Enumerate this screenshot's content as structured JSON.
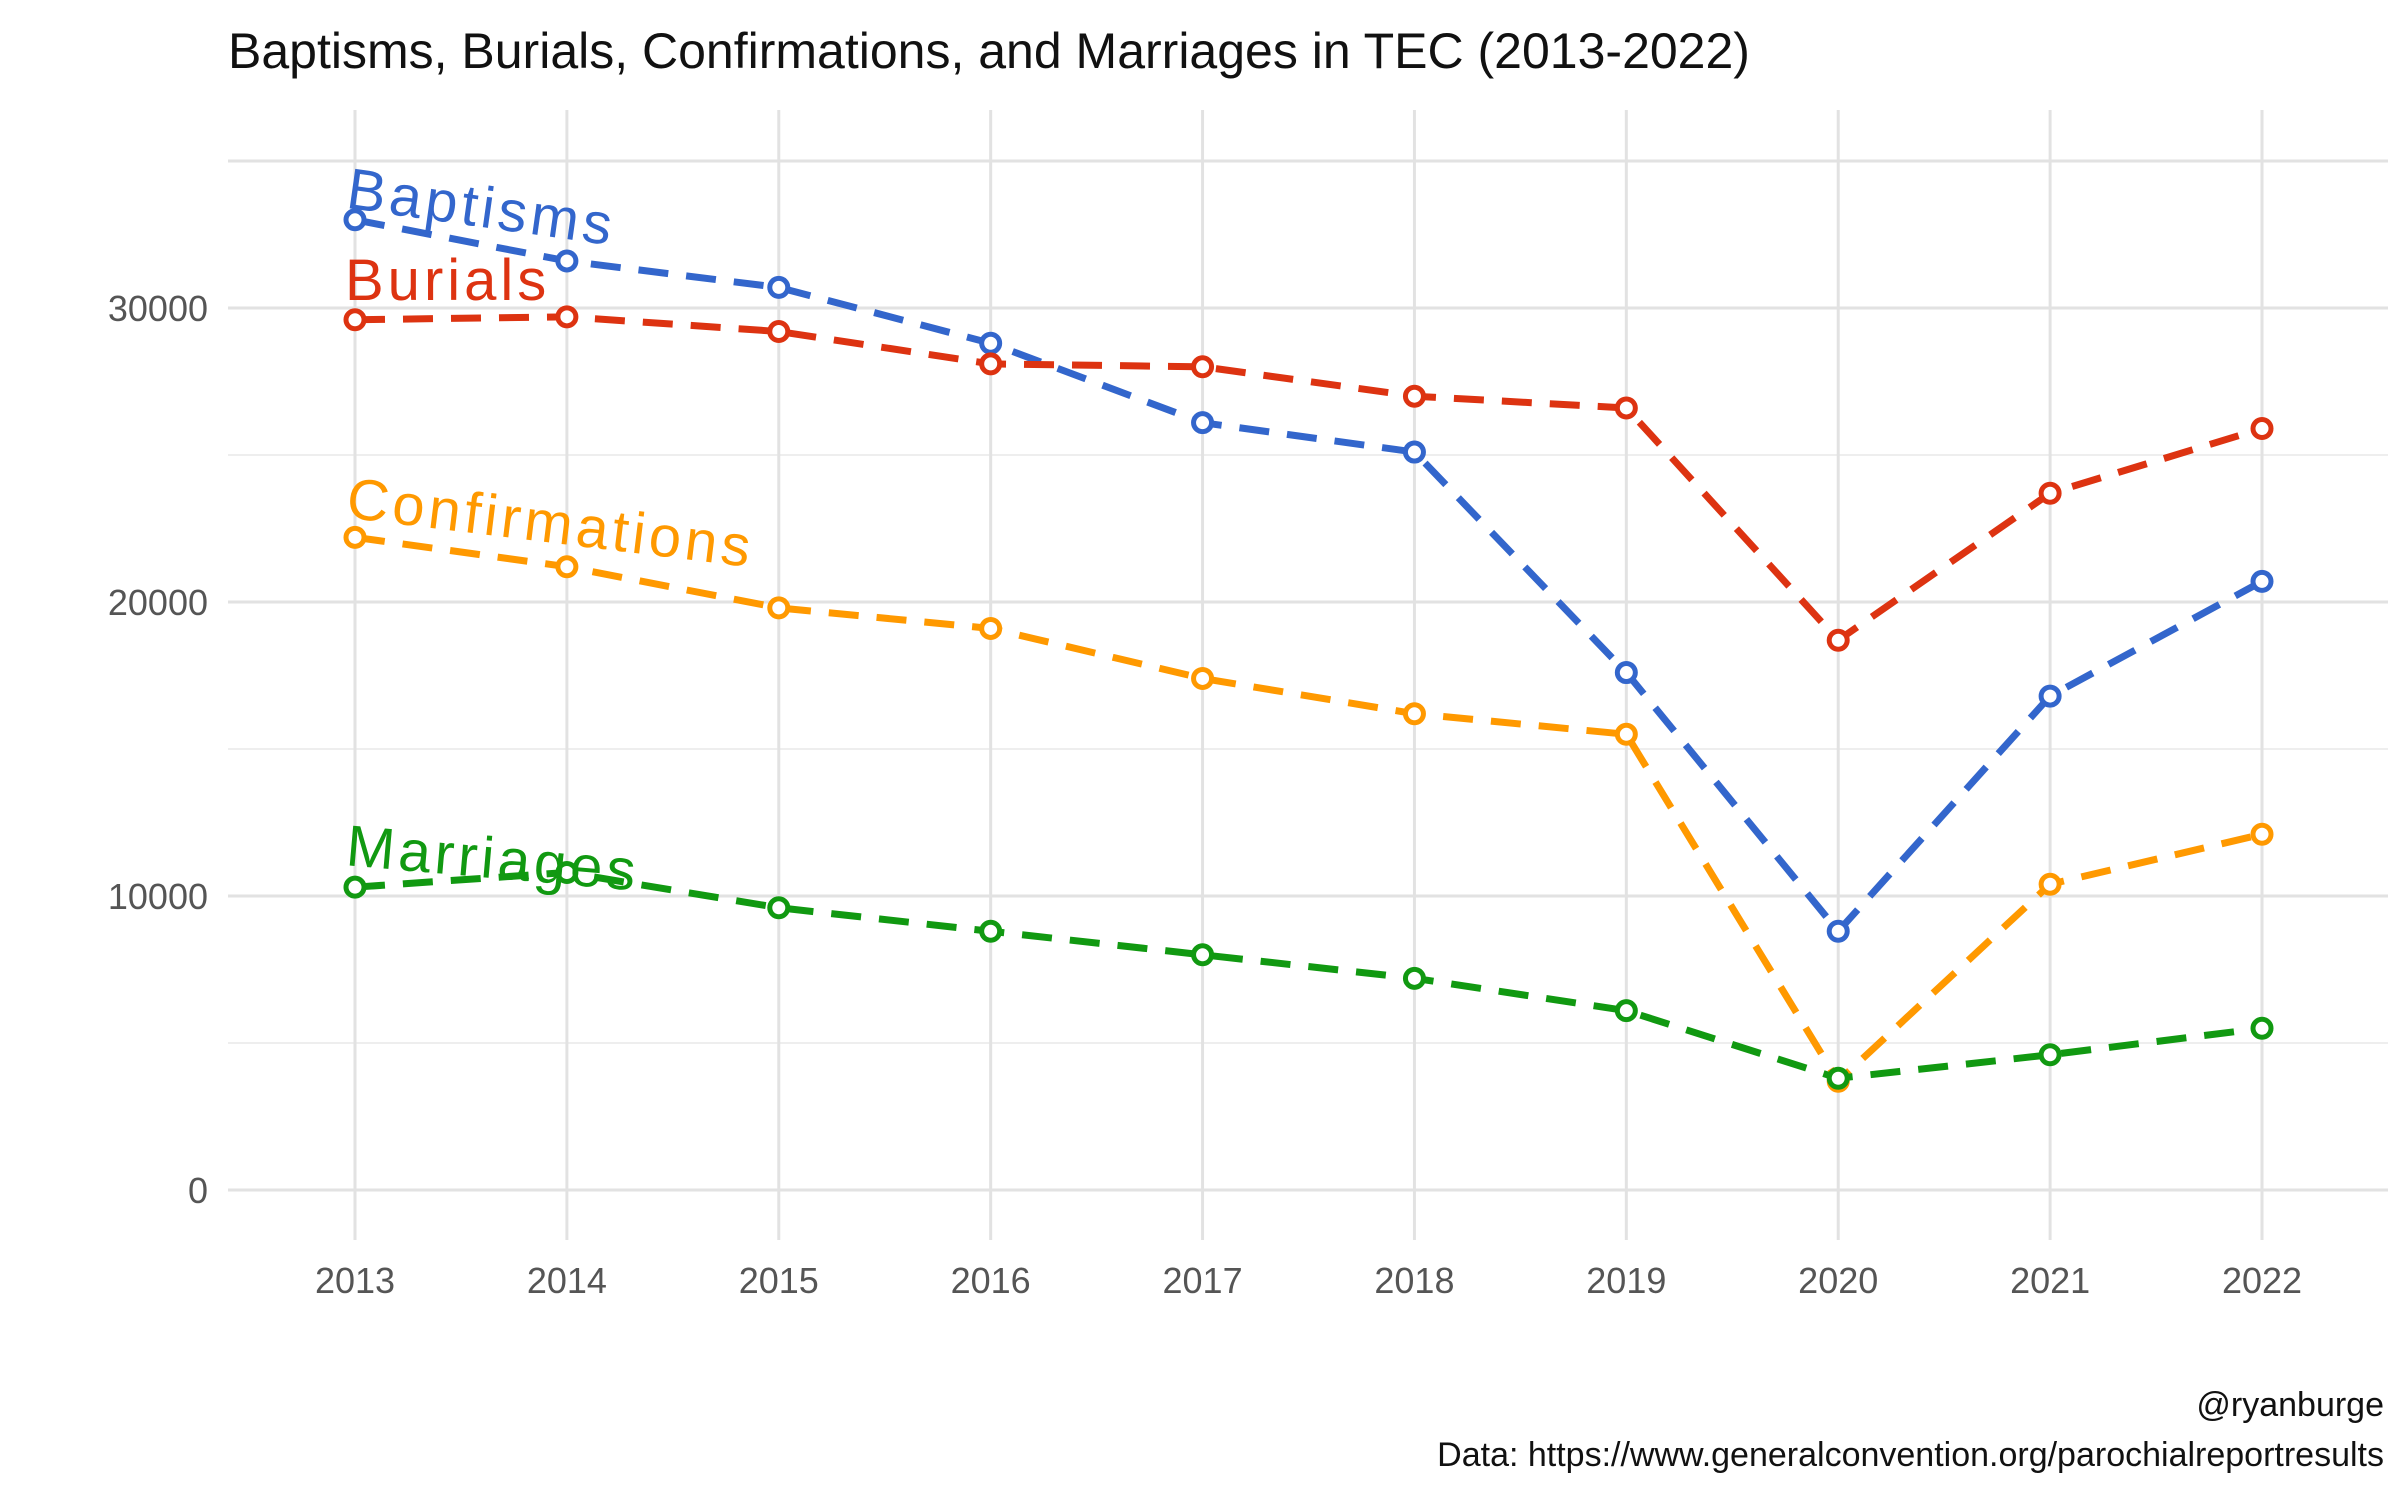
{
  "chart_data": {
    "type": "line",
    "title": "Baptisms, Burials, Confirmations, and Marriages in TEC (2013-2022)",
    "xlabel": "",
    "ylabel": "",
    "x": [
      "2013",
      "2014",
      "2015",
      "2016",
      "2017",
      "2018",
      "2019",
      "2020",
      "2021",
      "2022"
    ],
    "ylim": [
      -1000,
      35000
    ],
    "yticks": [
      "0",
      "10000",
      "20000",
      "30000"
    ],
    "ytick_values": [
      0,
      10000,
      20000,
      30000
    ],
    "grid": true,
    "series": [
      {
        "name": "Baptisms",
        "color": "#3366cc",
        "values": [
          33000,
          31600,
          30700,
          28800,
          26100,
          25100,
          17600,
          8800,
          16800,
          20700
        ]
      },
      {
        "name": "Burials",
        "color": "#dd3311",
        "values": [
          29600,
          29700,
          29200,
          28100,
          28000,
          27000,
          26600,
          18700,
          23700,
          25900
        ]
      },
      {
        "name": "Confirmations",
        "color": "#ff9900",
        "values": [
          22200,
          21200,
          19800,
          19100,
          17400,
          16200,
          15500,
          3700,
          10400,
          12100
        ]
      },
      {
        "name": "Marriages",
        "color": "#119911",
        "values": [
          10300,
          10800,
          9600,
          8800,
          8000,
          7200,
          6100,
          3800,
          4600,
          5500
        ]
      }
    ],
    "caption": [
      "@ryanburge",
      "Data: https://www.generalconvention.org/parochialreportresults"
    ]
  }
}
